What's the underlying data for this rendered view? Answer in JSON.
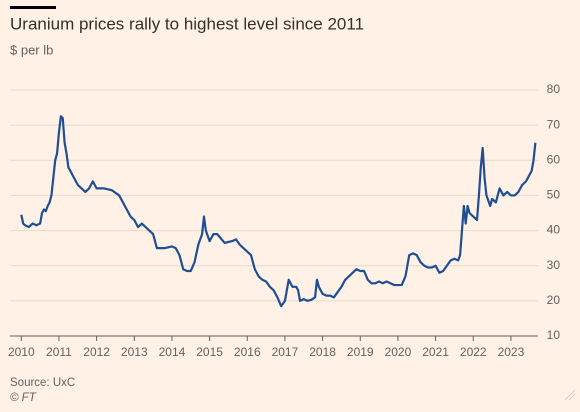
{
  "chart_data": {
    "type": "line",
    "title": "Uranium prices rally to highest level since 2011",
    "subtitle": "$ per lb",
    "source": "Source: UxC",
    "credit": "© FT",
    "xlim": [
      2009.7,
      2024.25
    ],
    "xticks": [
      2010,
      2011,
      2012,
      2013,
      2014,
      2015,
      2016,
      2017,
      2018,
      2019,
      2020,
      2021,
      2022,
      2023
    ],
    "ylim": [
      10,
      80
    ],
    "yticks": [
      10,
      20,
      30,
      40,
      50,
      60,
      70,
      80
    ],
    "grid": true,
    "series": [
      {
        "name": "Uranium price",
        "color": "#1f4e93",
        "x": [
          2010.0,
          2010.05,
          2010.1,
          2010.2,
          2010.3,
          2010.4,
          2010.5,
          2010.55,
          2010.6,
          2010.65,
          2010.7,
          2010.75,
          2010.8,
          2010.85,
          2010.9,
          2010.95,
          2011.0,
          2011.05,
          2011.1,
          2011.15,
          2011.2,
          2011.25,
          2011.3,
          2011.4,
          2011.5,
          2011.6,
          2011.7,
          2011.8,
          2011.9,
          2012.0,
          2012.2,
          2012.4,
          2012.6,
          2012.7,
          2012.8,
          2012.9,
          2013.0,
          2013.1,
          2013.2,
          2013.4,
          2013.5,
          2013.6,
          2013.8,
          2014.0,
          2014.1,
          2014.2,
          2014.3,
          2014.4,
          2014.5,
          2014.6,
          2014.7,
          2014.8,
          2014.85,
          2014.9,
          2015.0,
          2015.1,
          2015.2,
          2015.4,
          2015.6,
          2015.7,
          2015.8,
          2015.9,
          2016.0,
          2016.1,
          2016.2,
          2016.3,
          2016.4,
          2016.5,
          2016.6,
          2016.7,
          2016.8,
          2016.9,
          2017.0,
          2017.05,
          2017.1,
          2017.2,
          2017.3,
          2017.35,
          2017.4,
          2017.5,
          2017.6,
          2017.7,
          2017.8,
          2017.85,
          2017.9,
          2018.0,
          2018.1,
          2018.2,
          2018.3,
          2018.4,
          2018.5,
          2018.6,
          2018.7,
          2018.8,
          2018.9,
          2019.0,
          2019.1,
          2019.2,
          2019.3,
          2019.4,
          2019.5,
          2019.6,
          2019.7,
          2019.8,
          2019.9,
          2020.0,
          2020.1,
          2020.2,
          2020.3,
          2020.4,
          2020.5,
          2020.6,
          2020.7,
          2020.8,
          2020.9,
          2021.0,
          2021.1,
          2021.2,
          2021.3,
          2021.4,
          2021.5,
          2021.6,
          2021.65,
          2021.7,
          2021.75,
          2021.8,
          2021.85,
          2021.9,
          2022.0,
          2022.1,
          2022.15,
          2022.2,
          2022.25,
          2022.3,
          2022.35,
          2022.45,
          2022.5,
          2022.6,
          2022.7,
          2022.8,
          2022.9,
          2023.0,
          2023.1,
          2023.2,
          2023.3,
          2023.4,
          2023.5,
          2023.55,
          2023.6,
          2023.65
        ],
        "values": [
          44.5,
          42,
          41.5,
          41,
          42,
          41.5,
          42,
          45,
          46,
          45.5,
          47,
          48,
          50,
          55,
          60,
          62,
          68,
          72.5,
          72,
          65,
          62,
          58,
          57,
          55,
          53,
          52,
          51,
          52,
          54,
          52,
          52,
          51.5,
          50,
          48,
          46,
          44,
          43,
          41,
          42,
          40,
          39,
          35,
          35,
          35.5,
          35,
          33,
          29,
          28.5,
          28.5,
          31,
          36,
          39,
          44,
          40,
          37,
          39,
          39,
          36.5,
          37,
          37.5,
          36,
          35,
          34,
          33,
          29,
          27,
          26,
          25.5,
          24,
          23,
          21,
          18.5,
          20,
          23,
          26,
          24,
          24,
          23,
          20,
          20.5,
          20,
          20.3,
          21,
          26,
          24,
          22,
          21.5,
          21.5,
          21,
          22.5,
          24,
          26,
          27,
          28,
          29,
          28.5,
          28.5,
          26,
          25,
          25,
          25.5,
          25,
          25.5,
          25,
          24.5,
          24.5,
          24.5,
          27,
          33,
          33.5,
          33,
          31,
          30,
          29.5,
          29.5,
          30,
          28,
          28.5,
          30,
          31.5,
          32,
          31.5,
          33,
          40,
          47,
          42,
          47,
          45,
          44,
          43,
          50,
          58,
          63.5,
          55,
          50,
          47,
          49,
          48,
          52,
          50,
          51,
          50,
          50,
          51,
          53,
          54,
          56,
          57,
          60,
          65
        ]
      }
    ]
  }
}
